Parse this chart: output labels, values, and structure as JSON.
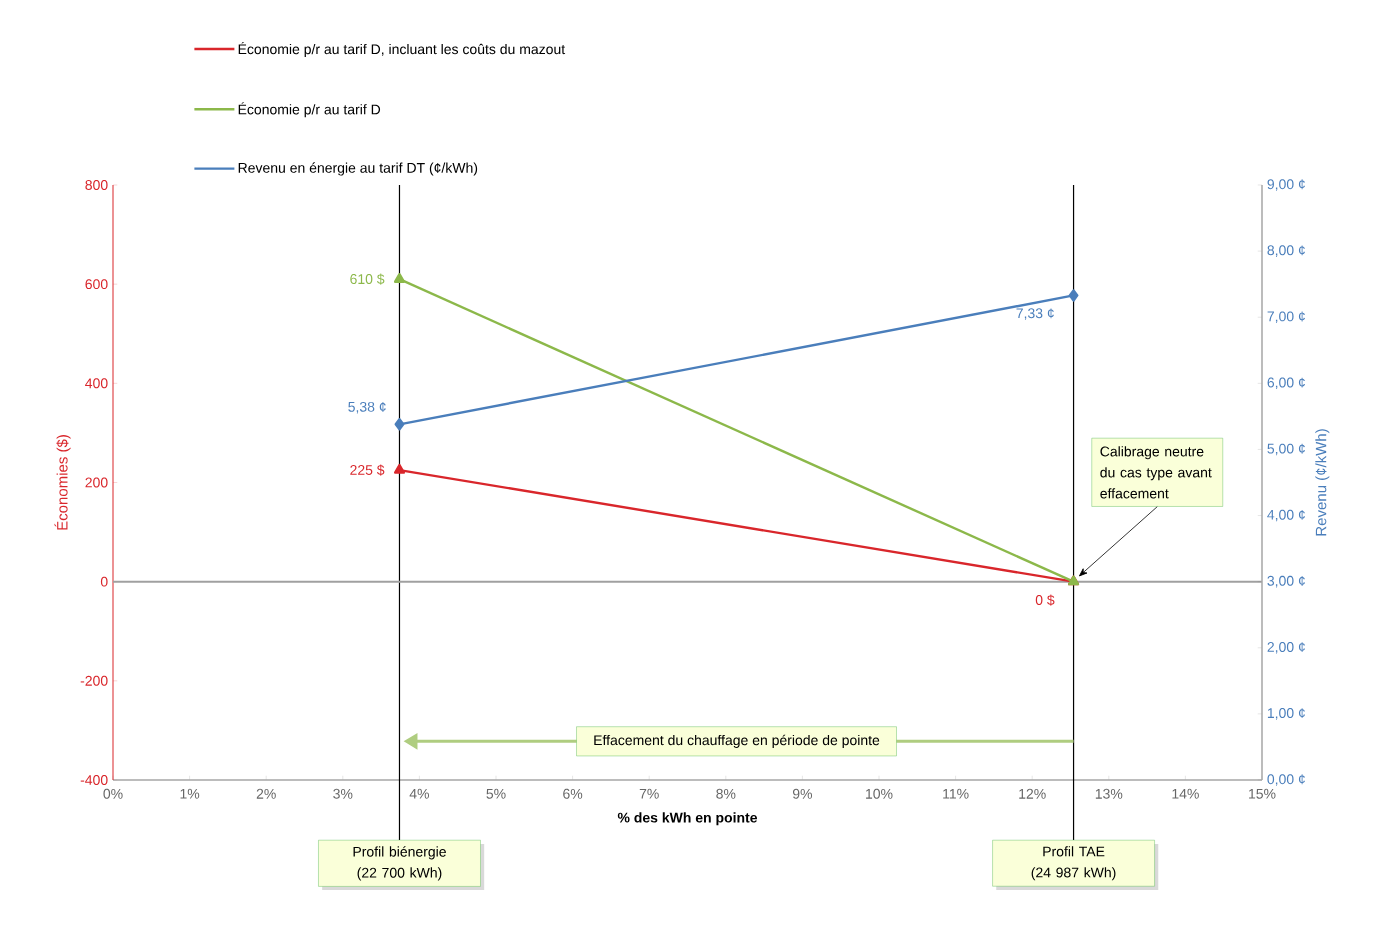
{
  "chart_data": {
    "type": "line",
    "x": [
      3.74,
      12.54
    ],
    "series": [
      {
        "name": "Économie p/r au tarif D, incluant les coûts du mazout",
        "color": "#d9262b",
        "marker": "triangle",
        "values": [
          225,
          0
        ],
        "value_labels": [
          "225  $",
          "0  $"
        ]
      },
      {
        "name": "Économie p/r au tarif D",
        "color": "#8cb84a",
        "marker": "triangle",
        "values": [
          610,
          0
        ],
        "value_labels": [
          "610  $",
          null
        ]
      },
      {
        "name": "Revenu en énergie au tarif DT (¢/kWh)",
        "color": "#4a7ebb",
        "marker": "diamond",
        "axis": "y2",
        "values": [
          5.38,
          7.33
        ],
        "value_labels": [
          "5,38 ¢",
          "7,33 ¢"
        ]
      }
    ],
    "xlabel": "% des kWh en pointe",
    "ylabel": "Économies ($)",
    "y2label": "Revenu (¢/kWh)",
    "xlim": [
      0,
      15
    ],
    "xticks": [
      {
        "value": 0,
        "label": "0%"
      },
      {
        "value": 1,
        "label": "1%"
      },
      {
        "value": 2,
        "label": "2%"
      },
      {
        "value": 3,
        "label": "3%"
      },
      {
        "value": 4,
        "label": "4%"
      },
      {
        "value": 5,
        "label": "5%"
      },
      {
        "value": 6,
        "label": "6%"
      },
      {
        "value": 7,
        "label": "7%"
      },
      {
        "value": 8,
        "label": "8%"
      },
      {
        "value": 9,
        "label": "9%"
      },
      {
        "value": 10,
        "label": "10%"
      },
      {
        "value": 11,
        "label": "11%"
      },
      {
        "value": 12,
        "label": "12%"
      },
      {
        "value": 13,
        "label": "13%"
      },
      {
        "value": 14,
        "label": "14%"
      },
      {
        "value": 15,
        "label": "15%"
      }
    ],
    "ylim": [
      -400,
      800
    ],
    "yticks": [
      -400,
      -200,
      0,
      200,
      400,
      600,
      800
    ],
    "y2lim": [
      0,
      9
    ],
    "y2ticks": [
      {
        "value": 0,
        "label": "0,00 ¢"
      },
      {
        "value": 1,
        "label": "1,00 ¢"
      },
      {
        "value": 2,
        "label": "2,00 ¢"
      },
      {
        "value": 3,
        "label": "3,00 ¢"
      },
      {
        "value": 4,
        "label": "4,00 ¢"
      },
      {
        "value": 5,
        "label": "5,00 ¢"
      },
      {
        "value": 6,
        "label": "6,00 ¢"
      },
      {
        "value": 7,
        "label": "7,00 ¢"
      },
      {
        "value": 8,
        "label": "8,00 ¢"
      },
      {
        "value": 9,
        "label": "9,00 ¢"
      }
    ],
    "ref_lines": [
      {
        "axis": "x",
        "value": 3.74,
        "label": "Profil biénergie (22 700 kWh)",
        "color": "#000000"
      },
      {
        "axis": "x",
        "value": 12.54,
        "label": "Profil TAE (24 987 kWh)",
        "color": "#000000"
      },
      {
        "axis": "y",
        "value": 0,
        "color": "#a0a0a0"
      }
    ],
    "annotations": [
      "Effacement du chauffage en période de pointe",
      "Calibrage neutre du cas type avant effacement"
    ],
    "legend": "top left",
    "grid": false
  }
}
